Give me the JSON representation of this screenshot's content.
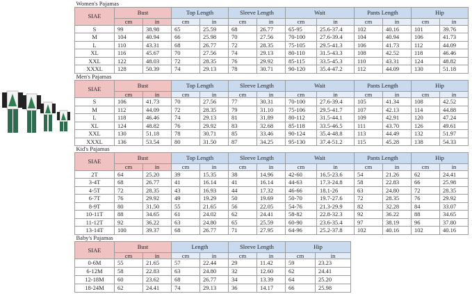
{
  "units": [
    "cm",
    "in"
  ],
  "sections": [
    {
      "title": "Women's Pajamas",
      "headers": [
        "SIAE",
        "Bust",
        "Top Length",
        "Sleeve Length",
        "Wait",
        "Pants Length",
        "Hip"
      ],
      "rows": [
        [
          "S",
          "99",
          "38.98",
          "65",
          "25.59",
          "68",
          "26.77",
          "65-95",
          "25.6-37.4",
          "102",
          "40.16",
          "101",
          "39.76"
        ],
        [
          "M",
          "104",
          "40.94",
          "66",
          "25.98",
          "70",
          "27.56",
          "70-100",
          "27.6-39.4",
          "104",
          "40.94",
          "106",
          "41.73"
        ],
        [
          "L",
          "110",
          "43.31",
          "68",
          "26.77",
          "72",
          "28.35",
          "75-105",
          "29.5-41.3",
          "106",
          "41.73",
          "112",
          "44.09"
        ],
        [
          "XL",
          "116",
          "45.67",
          "70",
          "27.56",
          "74",
          "29.13",
          "80-110",
          "31.5-43.3",
          "108",
          "42.52",
          "118",
          "46.46"
        ],
        [
          "XXL",
          "122",
          "48.03",
          "72",
          "28.35",
          "76",
          "29.92",
          "85-115",
          "33.5-45.3",
          "110",
          "43.31",
          "124",
          "48.82"
        ],
        [
          "XXXL",
          "128",
          "50.39",
          "74",
          "29.13",
          "78",
          "30.71",
          "90-120",
          "35.4-47.2",
          "112",
          "44.09",
          "130",
          "51.18"
        ]
      ]
    },
    {
      "title": "Men's Pajamas",
      "headers": [
        "SIAE",
        "Bust",
        "Top Length",
        "Sleeve Length",
        "Wait",
        "Pants Length",
        "Hip"
      ],
      "rows": [
        [
          "S",
          "106",
          "41.73",
          "70",
          "27.56",
          "77",
          "30.31",
          "70-100",
          "27.6-39.4",
          "105",
          "41.34",
          "108",
          "42.52"
        ],
        [
          "M",
          "112",
          "44.09",
          "72",
          "28.35",
          "79",
          "31.10",
          "75-106",
          "29.5-41.7",
          "107",
          "42.13",
          "114",
          "44.88"
        ],
        [
          "L",
          "118",
          "46.46",
          "74",
          "29.13",
          "81",
          "31.89",
          "80-112",
          "31.5-44.1",
          "109",
          "42.91",
          "120",
          "47.24"
        ],
        [
          "XL",
          "124",
          "48.82",
          "76",
          "29.92",
          "83",
          "32.68",
          "85-118",
          "33.5-46.5",
          "111",
          "43.70",
          "126",
          "49.61"
        ],
        [
          "XXL",
          "130",
          "51.18",
          "78",
          "30.71",
          "85",
          "33.46",
          "90-124",
          "35.4-48.8",
          "113",
          "44.49",
          "132",
          "51.97"
        ],
        [
          "XXXL",
          "136",
          "53.54",
          "80",
          "31.50",
          "87",
          "34.25",
          "95-130",
          "37.4-51.2",
          "115",
          "45.28",
          "138",
          "54.33"
        ]
      ]
    },
    {
      "title": "Kid's Pajamas",
      "headers": [
        "SIAE",
        "Bust",
        "Top Length",
        "Sleeve Length",
        "Wait",
        "Pants Length",
        "Hip"
      ],
      "rows": [
        [
          "2T",
          "64",
          "25.20",
          "39",
          "15.35",
          "38",
          "14.96",
          "42-60",
          "16.5-23.6",
          "54",
          "21.26",
          "62",
          "24.41"
        ],
        [
          "3-4T",
          "68",
          "26.77",
          "41",
          "16.14",
          "41",
          "16.14",
          "44-63",
          "17.3-24.8",
          "58",
          "22.83",
          "66",
          "25.98"
        ],
        [
          "4-5T",
          "72",
          "28.35",
          "43",
          "16.93",
          "44",
          "17.32",
          "46-66",
          "18.1-26",
          "63",
          "24.80",
          "72",
          "28.35"
        ],
        [
          "6-7T",
          "76",
          "29.92",
          "49",
          "19.29",
          "50",
          "19.69",
          "50-70",
          "19.7-27.6",
          "72",
          "28.35",
          "76",
          "29.92"
        ],
        [
          "8-9T",
          "80",
          "31.50",
          "55",
          "21.65",
          "56",
          "22.05",
          "54-76",
          "21.3-29.9",
          "82",
          "32.28",
          "84",
          "33.07"
        ],
        [
          "10-11T",
          "88",
          "34.65",
          "61",
          "24.02",
          "62",
          "24.41",
          "58-82",
          "22.8-32.3",
          "92",
          "36.22",
          "88",
          "34.65"
        ],
        [
          "11-12T",
          "92",
          "36.22",
          "63",
          "24.80",
          "65",
          "25.59",
          "60-90",
          "23.6-35.4",
          "97",
          "38.19",
          "96",
          "37.80"
        ],
        [
          "13-14T",
          "100",
          "39.37",
          "68",
          "26.77",
          "71",
          "27.95",
          "64-96",
          "25.2-37.8",
          "102",
          "40.16",
          "102",
          "40.16"
        ]
      ]
    },
    {
      "title": "Baby's Pajamas",
      "headers": [
        "SIAE",
        "Bust",
        "Length",
        "Sleeve Length",
        "Hip"
      ],
      "rows": [
        [
          "0-6M",
          "55",
          "21.65",
          "57",
          "22.44",
          "29",
          "11.42",
          "59",
          "23.23"
        ],
        [
          "6-12M",
          "58",
          "22.83",
          "63",
          "24.80",
          "32",
          "12.60",
          "62",
          "24.41"
        ],
        [
          "12-18M",
          "60",
          "23.62",
          "68",
          "26.77",
          "34",
          "13.39",
          "64",
          "25.20"
        ],
        [
          "18-24M",
          "62",
          "24.41",
          "74",
          "29.13",
          "36",
          "14.17",
          "66",
          "25.98"
        ]
      ]
    }
  ]
}
